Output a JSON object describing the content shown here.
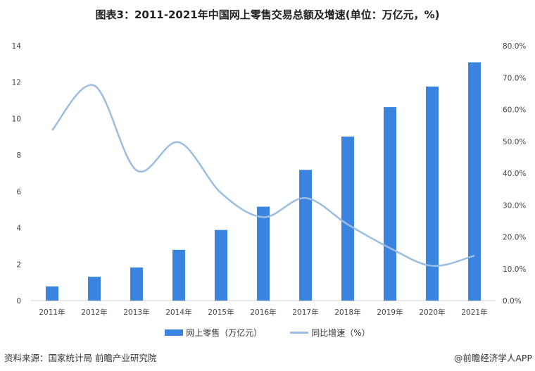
{
  "chart_data": {
    "type": "bar",
    "title": "图表3：2011-2021年中国网上零售交易总额及增速(单位：万亿元，%)",
    "categories": [
      "2011年",
      "2012年",
      "2013年",
      "2014年",
      "2015年",
      "2016年",
      "2017年",
      "2018年",
      "2019年",
      "2020年",
      "2021年"
    ],
    "series": [
      {
        "name": "网上零售（万亿元）",
        "type": "bar",
        "axis": "left",
        "color": "#3a84e0",
        "values": [
          0.78,
          1.31,
          1.82,
          2.79,
          3.88,
          5.16,
          7.18,
          9.01,
          10.63,
          11.76,
          13.09
        ]
      },
      {
        "name": "同比增速（%）",
        "type": "line",
        "axis": "right",
        "color": "#9cbde3",
        "values": [
          53.5,
          67.5,
          40.9,
          49.7,
          33.8,
          26.2,
          32.2,
          23.9,
          16.5,
          10.9,
          14.1
        ]
      }
    ],
    "left_axis": {
      "ylim": [
        0,
        14
      ],
      "ticks": [
        "0",
        "2",
        "4",
        "6",
        "8",
        "10",
        "12",
        "14"
      ]
    },
    "right_axis": {
      "ylim": [
        0,
        80
      ],
      "ticks": [
        "0.0%",
        "10.0%",
        "20.0%",
        "30.0%",
        "40.0%",
        "50.0%",
        "60.0%",
        "70.0%",
        "80.0%"
      ]
    },
    "grid": false,
    "legend_position": "bottom"
  },
  "footer": {
    "source": "资料来源：国家统计局 前瞻产业研究院",
    "brand": "@前瞻经济学人APP"
  }
}
